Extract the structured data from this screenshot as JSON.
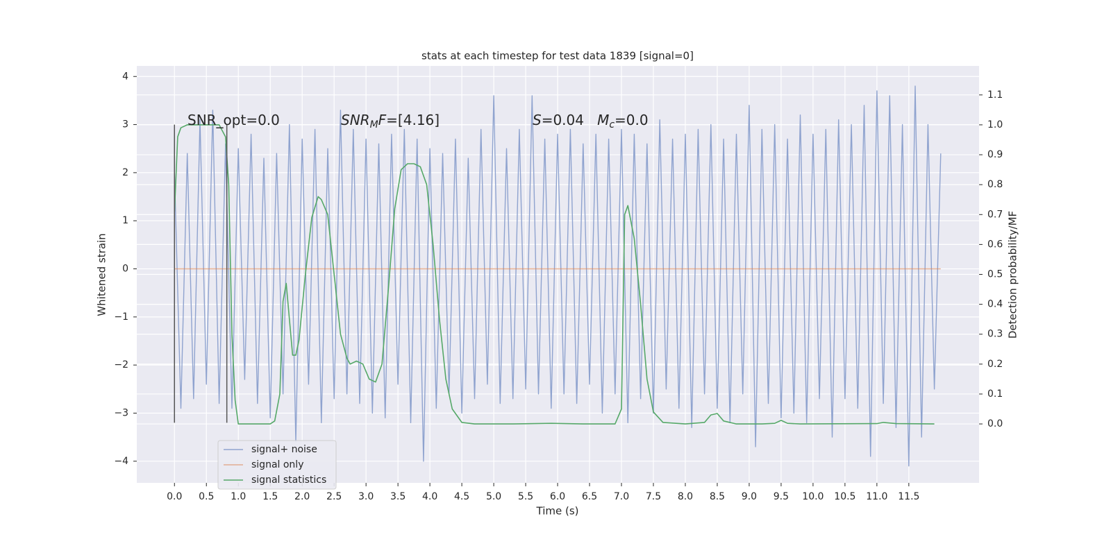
{
  "chart_data": {
    "type": "line",
    "title": "stats at each timestep for test data 1839 [signal=0]",
    "xlabel": "Time (s)",
    "ylabel": "Whitened strain",
    "y2label": "Detection probability/MF",
    "xlim": [
      -0.59,
      12.6
    ],
    "ylim": [
      -4.45,
      4.22
    ],
    "y2lim": [
      -0.197,
      1.197
    ],
    "grid": true,
    "background": "#eaeaf2",
    "xticks": [
      {
        "value": 0,
        "label": "0.0"
      },
      {
        "value": 0.5,
        "label": "0.5"
      },
      {
        "value": 1,
        "label": "1.0"
      },
      {
        "value": 1.5,
        "label": "1.5"
      },
      {
        "value": 2,
        "label": "2.0"
      },
      {
        "value": 2.5,
        "label": "2.5"
      },
      {
        "value": 3,
        "label": "3.0"
      },
      {
        "value": 3.5,
        "label": "3.5"
      },
      {
        "value": 4,
        "label": "4.0"
      },
      {
        "value": 4.5,
        "label": "4.5"
      },
      {
        "value": 5,
        "label": "5.0"
      },
      {
        "value": 5.5,
        "label": "5.5"
      },
      {
        "value": 6,
        "label": "6.0"
      },
      {
        "value": 6.5,
        "label": "6.5"
      },
      {
        "value": 7,
        "label": "7.0"
      },
      {
        "value": 7.5,
        "label": "7.5"
      },
      {
        "value": 8,
        "label": "8.0"
      },
      {
        "value": 8.5,
        "label": "8.5"
      },
      {
        "value": 9,
        "label": "9.0"
      },
      {
        "value": 9.5,
        "label": "9.5"
      },
      {
        "value": 10,
        "label": "10.0"
      },
      {
        "value": 10.5,
        "label": "10.5"
      },
      {
        "value": 11,
        "label": "11.0"
      },
      {
        "value": 11.5,
        "label": "11.5"
      }
    ],
    "yticks": [
      {
        "value": -4,
        "label": "−4"
      },
      {
        "value": -3,
        "label": "−3"
      },
      {
        "value": -2,
        "label": "−2"
      },
      {
        "value": -1,
        "label": "−1"
      },
      0,
      1,
      2,
      3,
      4
    ],
    "y2ticks": [
      {
        "value": 0,
        "label": "0.0"
      },
      {
        "value": 0.1,
        "label": "0.1"
      },
      {
        "value": 0.2,
        "label": "0.2"
      },
      {
        "value": 0.3,
        "label": "0.3"
      },
      {
        "value": 0.4,
        "label": "0.4"
      },
      {
        "value": 0.5,
        "label": "0.5"
      },
      {
        "value": 0.6,
        "label": "0.6"
      },
      {
        "value": 0.7,
        "label": "0.7"
      },
      {
        "value": 0.8,
        "label": "0.8"
      },
      {
        "value": 0.9,
        "label": "0.9"
      },
      {
        "value": 1,
        "label": "1.0"
      },
      {
        "value": 1.1,
        "label": "1.1"
      }
    ],
    "series": [
      {
        "name": "signal+ noise",
        "color": "#8fa3cf",
        "x": [
          0,
          0.1,
          0.2,
          0.3,
          0.4,
          0.5,
          0.6,
          0.7,
          0.8,
          0.9,
          1,
          1.1,
          1.2,
          1.3,
          1.4,
          1.5,
          1.6,
          1.7,
          1.8,
          1.9,
          2,
          2.1,
          2.2,
          2.3,
          2.4,
          2.5,
          2.6,
          2.7,
          2.8,
          2.9,
          3,
          3.1,
          3.2,
          3.3,
          3.4,
          3.5,
          3.6,
          3.7,
          3.8,
          3.9,
          4,
          4.1,
          4.2,
          4.3,
          4.4,
          4.5,
          4.6,
          4.7,
          4.8,
          4.9,
          5,
          5.1,
          5.2,
          5.3,
          5.4,
          5.5,
          5.6,
          5.7,
          5.8,
          5.9,
          6,
          6.1,
          6.2,
          6.3,
          6.4,
          6.5,
          6.6,
          6.7,
          6.8,
          6.9,
          7,
          7.1,
          7.2,
          7.3,
          7.4,
          7.5,
          7.6,
          7.7,
          7.8,
          7.9,
          8,
          8.1,
          8.2,
          8.3,
          8.4,
          8.5,
          8.6,
          8.7,
          8.8,
          8.9,
          9,
          9.1,
          9.2,
          9.3,
          9.4,
          9.5,
          9.6,
          9.7,
          9.8,
          9.9,
          10,
          10.1,
          10.2,
          10.3,
          10.4,
          10.5,
          10.6,
          10.7,
          10.8,
          10.9,
          11,
          11.1,
          11.2,
          11.3,
          11.4,
          11.5,
          11.6,
          11.7,
          11.8,
          11.9,
          12
        ],
        "values": [
          2.0,
          -2.9,
          2.4,
          -2.7,
          3.1,
          -2.4,
          3.3,
          -2.8,
          2.6,
          -2.9,
          2.5,
          -2.3,
          2.8,
          -2.8,
          2.3,
          -3.1,
          2.4,
          -2.6,
          3.0,
          -3.6,
          2.7,
          -2.4,
          2.9,
          -3.2,
          2.5,
          -2.7,
          3.3,
          -2.6,
          2.9,
          -2.8,
          2.7,
          -3.0,
          2.6,
          -3.1,
          2.8,
          -2.4,
          2.9,
          -3.2,
          2.7,
          -4.0,
          2.5,
          -2.9,
          2.4,
          -2.6,
          2.7,
          -3.0,
          2.3,
          -2.7,
          2.9,
          -2.4,
          3.6,
          -2.8,
          2.5,
          -2.7,
          2.9,
          -2.5,
          3.6,
          -2.6,
          2.7,
          -2.9,
          2.8,
          -2.6,
          2.9,
          -2.8,
          2.6,
          -2.4,
          2.8,
          -3.0,
          2.7,
          -2.6,
          2.9,
          -3.2,
          2.8,
          -2.7,
          2.6,
          -3.0,
          3.1,
          -2.5,
          2.7,
          -2.9,
          2.8,
          -3.3,
          2.9,
          -2.6,
          3.0,
          -2.9,
          2.7,
          -3.2,
          2.8,
          -2.6,
          3.4,
          -3.7,
          2.9,
          -2.8,
          3.0,
          -3.1,
          2.7,
          -3.0,
          3.2,
          -3.2,
          2.8,
          -2.7,
          2.9,
          -3.5,
          3.1,
          -2.7,
          3.0,
          -2.9,
          3.4,
          -3.9,
          3.7,
          -2.8,
          3.6,
          -3.3,
          3.0,
          -4.1,
          3.8,
          -3.5,
          3.0,
          -2.5,
          2.4
        ]
      },
      {
        "name": "signal only",
        "color": "#dd8452",
        "x": [
          0,
          12
        ],
        "values": [
          0,
          0
        ]
      },
      {
        "name": "signal statistics",
        "color": "#55a868",
        "axis": "y2",
        "x": [
          0,
          0.05,
          0.1,
          0.2,
          0.5,
          0.7,
          0.8,
          0.85,
          0.9,
          0.95,
          1,
          1.2,
          1.5,
          1.57,
          1.65,
          1.7,
          1.75,
          1.8,
          1.85,
          1.9,
          1.95,
          2.05,
          2.15,
          2.25,
          2.3,
          2.4,
          2.5,
          2.6,
          2.7,
          2.75,
          2.85,
          2.95,
          3.05,
          3.15,
          3.25,
          3.35,
          3.45,
          3.55,
          3.65,
          3.75,
          3.85,
          3.95,
          4.05,
          4.15,
          4.25,
          4.35,
          4.5,
          4.7,
          5.3,
          5.9,
          6.4,
          6.9,
          7,
          7.05,
          7.1,
          7.2,
          7.3,
          7.4,
          7.5,
          7.65,
          8,
          8.3,
          8.4,
          8.5,
          8.6,
          8.8,
          9.2,
          9.4,
          9.5,
          9.6,
          9.8,
          11,
          11.1,
          11.3,
          11.9
        ],
        "values": [
          0.71,
          0.96,
          0.99,
          1.0,
          1.0,
          1.0,
          0.96,
          0.8,
          0.3,
          0.08,
          0.0,
          0.0,
          0.0,
          0.01,
          0.1,
          0.41,
          0.47,
          0.35,
          0.23,
          0.23,
          0.28,
          0.5,
          0.69,
          0.76,
          0.75,
          0.7,
          0.5,
          0.3,
          0.22,
          0.2,
          0.21,
          0.2,
          0.15,
          0.14,
          0.2,
          0.45,
          0.72,
          0.85,
          0.87,
          0.87,
          0.86,
          0.8,
          0.6,
          0.35,
          0.15,
          0.05,
          0.005,
          0.0,
          0.0,
          0.002,
          0.0,
          0.0,
          0.05,
          0.7,
          0.73,
          0.62,
          0.4,
          0.15,
          0.04,
          0.005,
          0.0,
          0.005,
          0.03,
          0.035,
          0.01,
          0.0,
          0.0,
          0.002,
          0.012,
          0.002,
          0.0,
          0.001,
          0.005,
          0.001,
          0.0
        ]
      }
    ],
    "vlines": [
      {
        "x": 0,
        "ymin": -3.2,
        "ymax": 3.0,
        "color": "#555555"
      },
      {
        "x": 0.82,
        "ymin": -3.2,
        "ymax": 3.0,
        "color": "#555555"
      }
    ],
    "annotations": [
      {
        "parts": [
          {
            "text": "SNR_opt=0.0",
            "style": "normal"
          }
        ]
      },
      {
        "parts": [
          {
            "text": "SNR",
            "style": "italic"
          },
          {
            "text": "M",
            "style": "sub"
          },
          {
            "text": "F",
            "style": "italic"
          },
          {
            "text": "=[4.16]",
            "style": "normal"
          }
        ]
      },
      {
        "parts": [
          {
            "text": "S",
            "style": "italic"
          },
          {
            "text": "=0.04   ",
            "style": "normal"
          },
          {
            "text": "M",
            "style": "italic"
          },
          {
            "text": "c",
            "style": "sub"
          },
          {
            "text": "=0.0",
            "style": "normal"
          }
        ]
      }
    ]
  }
}
